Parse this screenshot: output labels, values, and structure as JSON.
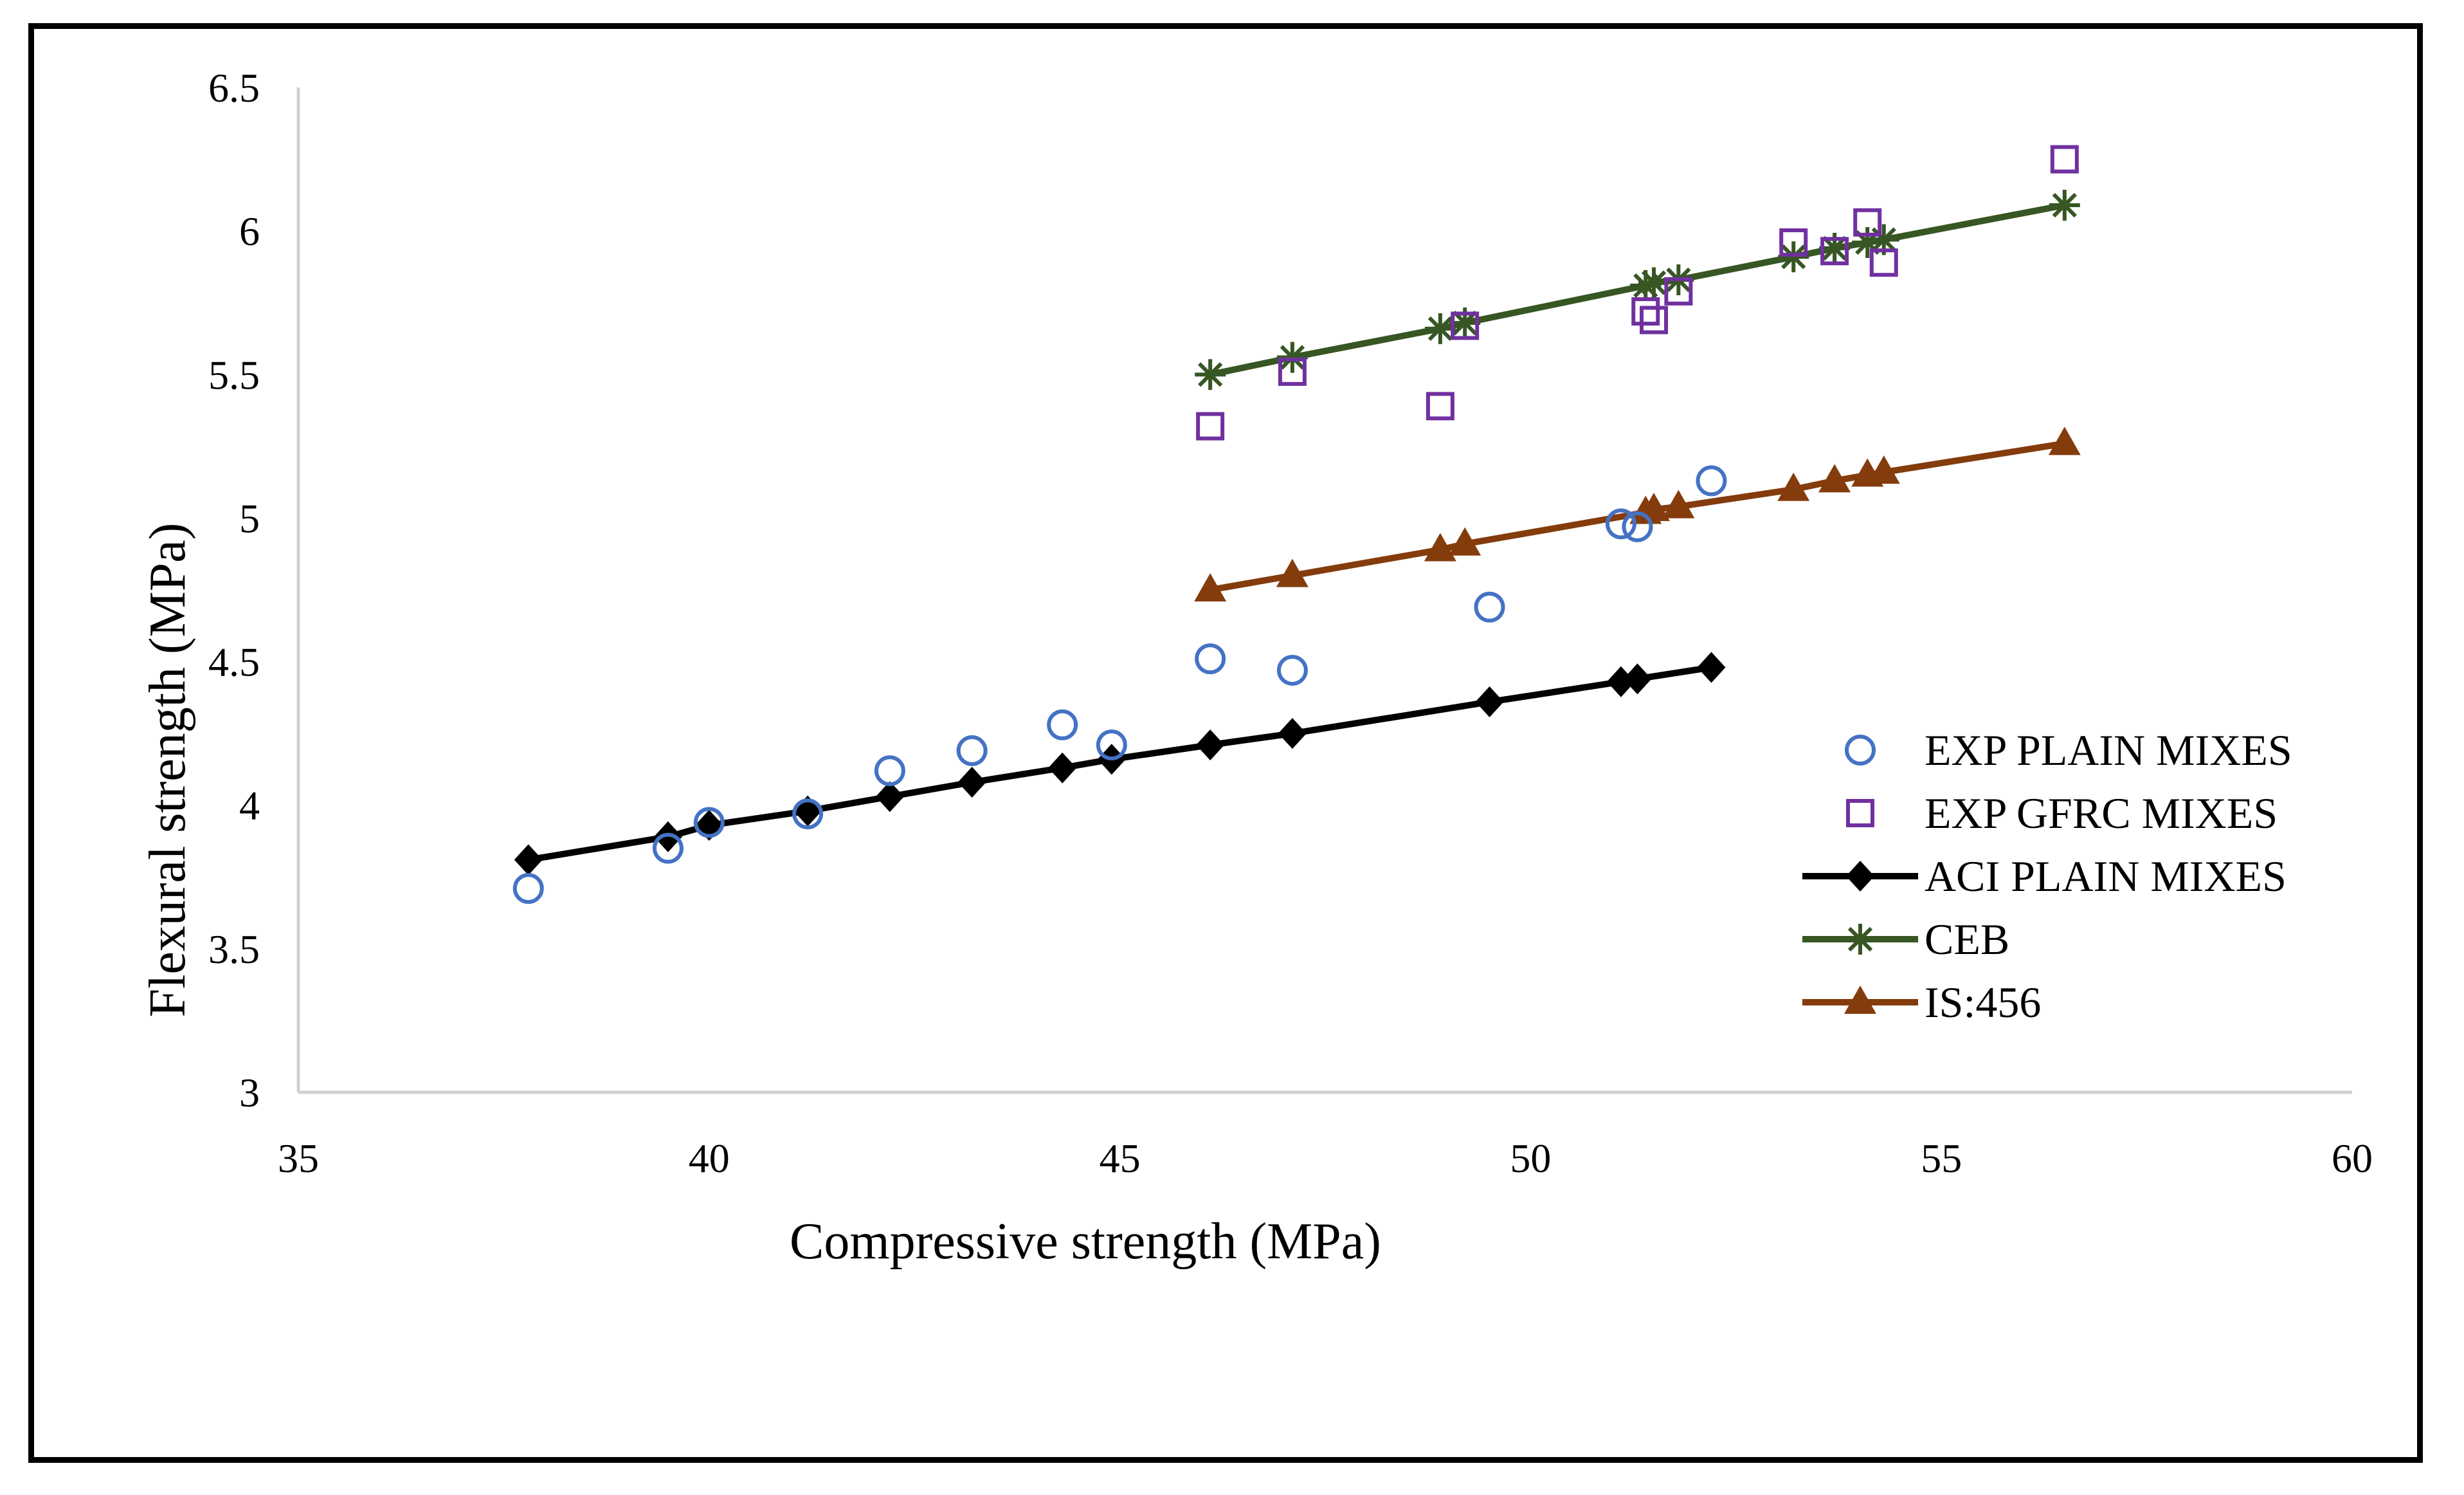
{
  "chart_data": {
    "type": "scatter",
    "title": "",
    "xlabel": "Compressive strength (MPa)",
    "ylabel": "Flexural strength (MPa)",
    "xlim": [
      35,
      60
    ],
    "ylim": [
      3,
      6.5
    ],
    "xticks": [
      35,
      40,
      45,
      50,
      55,
      60
    ],
    "yticks": [
      3,
      3.5,
      4,
      4.5,
      5,
      5.5,
      6,
      6.5
    ],
    "xtick_labels": [
      "35",
      "40",
      "45",
      "50",
      "55",
      "60"
    ],
    "ytick_labels": [
      "3",
      "3.5",
      "4",
      "4.5",
      "5",
      "5.5",
      "6",
      "6.5"
    ],
    "grid": false,
    "legend_position": "right",
    "series": [
      {
        "name": "EXP PLAIN MIXES",
        "marker": "circle",
        "line": false,
        "color": "#4472C4",
        "points": [
          [
            37.8,
            3.71
          ],
          [
            39.5,
            3.85
          ],
          [
            40.0,
            3.94
          ],
          [
            41.2,
            3.97
          ],
          [
            42.2,
            4.12
          ],
          [
            43.2,
            4.19
          ],
          [
            44.3,
            4.28
          ],
          [
            44.9,
            4.21
          ],
          [
            46.1,
            4.51
          ],
          [
            47.1,
            4.47
          ],
          [
            49.5,
            4.69
          ],
          [
            51.1,
            4.98
          ],
          [
            51.3,
            4.97
          ],
          [
            52.2,
            5.13
          ]
        ]
      },
      {
        "name": "EXP GFRC MIXES",
        "marker": "square",
        "line": false,
        "color": "#7030A0",
        "points": [
          [
            46.1,
            5.32
          ],
          [
            47.1,
            5.51
          ],
          [
            48.9,
            5.39
          ],
          [
            49.2,
            5.67
          ],
          [
            51.4,
            5.72
          ],
          [
            51.5,
            5.69
          ],
          [
            51.8,
            5.79
          ],
          [
            53.2,
            5.96
          ],
          [
            53.7,
            5.93
          ],
          [
            54.1,
            6.03
          ],
          [
            54.3,
            5.89
          ],
          [
            56.5,
            6.25
          ]
        ]
      },
      {
        "name": "ACI PLAIN MIXES",
        "marker": "diamond",
        "line": true,
        "color": "#000000",
        "points": [
          [
            37.8,
            3.81
          ],
          [
            39.5,
            3.89
          ],
          [
            40.0,
            3.93
          ],
          [
            41.2,
            3.98
          ],
          [
            42.2,
            4.03
          ],
          [
            43.2,
            4.08
          ],
          [
            44.3,
            4.13
          ],
          [
            44.9,
            4.16
          ],
          [
            46.1,
            4.21
          ],
          [
            47.1,
            4.25
          ],
          [
            49.5,
            4.36
          ],
          [
            51.1,
            4.43
          ],
          [
            51.3,
            4.44
          ],
          [
            52.2,
            4.48
          ]
        ]
      },
      {
        "name": "CEB",
        "marker": "asterisk",
        "line": true,
        "color": "#375623",
        "points": [
          [
            46.1,
            5.5
          ],
          [
            47.1,
            5.56
          ],
          [
            48.9,
            5.66
          ],
          [
            49.2,
            5.68
          ],
          [
            51.4,
            5.81
          ],
          [
            51.5,
            5.82
          ],
          [
            51.8,
            5.83
          ],
          [
            53.2,
            5.91
          ],
          [
            53.7,
            5.94
          ],
          [
            54.1,
            5.96
          ],
          [
            54.3,
            5.97
          ],
          [
            56.5,
            6.09
          ]
        ]
      },
      {
        "name": "IS:456",
        "marker": "triangle",
        "line": true,
        "color": "#843C0C",
        "points": [
          [
            46.1,
            4.75
          ],
          [
            47.1,
            4.8
          ],
          [
            48.9,
            4.89
          ],
          [
            49.2,
            4.91
          ],
          [
            51.4,
            5.02
          ],
          [
            51.5,
            5.03
          ],
          [
            51.8,
            5.04
          ],
          [
            53.2,
            5.1
          ],
          [
            53.7,
            5.13
          ],
          [
            54.1,
            5.15
          ],
          [
            54.3,
            5.16
          ],
          [
            56.5,
            5.26
          ]
        ]
      }
    ]
  }
}
